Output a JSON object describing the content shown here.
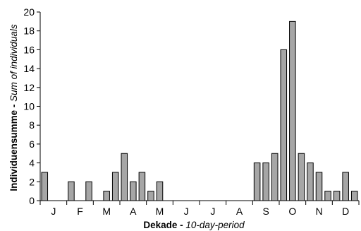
{
  "chart_data": {
    "type": "bar",
    "xlabel": {
      "main": "Dekade",
      "sep": " - ",
      "sub": "10-day-period"
    },
    "ylabel": {
      "main": "Individuensumme",
      "sep": " - ",
      "sub": "Sum of individuals"
    },
    "ylim": [
      0,
      20
    ],
    "yticks": [
      0,
      2,
      4,
      6,
      8,
      10,
      12,
      14,
      16,
      18,
      20
    ],
    "month_labels": [
      "J",
      "F",
      "M",
      "A",
      "M",
      "J",
      "J",
      "A",
      "S",
      "O",
      "N",
      "D"
    ],
    "categories": [
      "J1",
      "J2",
      "J3",
      "F1",
      "F2",
      "F3",
      "M1",
      "M2",
      "M3",
      "A1",
      "A2",
      "A3",
      "M1",
      "M2",
      "M3",
      "J1",
      "J2",
      "J3",
      "J1",
      "J2",
      "J3",
      "A1",
      "A2",
      "A3",
      "S1",
      "S2",
      "S3",
      "O1",
      "O2",
      "O3",
      "N1",
      "N2",
      "N3",
      "D1",
      "D2",
      "D3"
    ],
    "values": [
      3,
      0,
      0,
      2,
      0,
      2,
      0,
      1,
      3,
      5,
      2,
      3,
      1,
      2,
      0,
      0,
      0,
      0,
      0,
      0,
      0,
      0,
      0,
      0,
      4,
      4,
      5,
      16,
      19,
      5,
      4,
      3,
      1,
      1,
      3,
      1
    ],
    "bar_color": "#a6a6a6",
    "bar_stroke": "#000000",
    "grid": false
  }
}
